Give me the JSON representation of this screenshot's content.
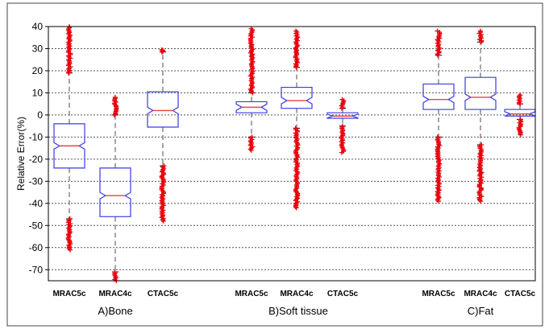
{
  "chart_data": {
    "type": "box",
    "ylabel": "Relative Error(%)",
    "ylim": [
      -75,
      40
    ],
    "yticks": [
      40,
      30,
      20,
      10,
      0,
      -10,
      -20,
      -30,
      -40,
      -50,
      -60,
      -70
    ],
    "grid": true,
    "colors": {
      "box": "#3a3ae6",
      "median": "#e8433a",
      "whisker": "#7f7f7f",
      "outlier": "#e8000b"
    },
    "groups": [
      {
        "label": "A)Bone",
        "boxes": [
          {
            "category": "MRAC5c",
            "q1": -24,
            "median": -14,
            "q3": -4,
            "whisker_low": -47,
            "whisker_high": 19,
            "outliers_low": [
              -47,
              -61
            ],
            "outliers_high": [
              19,
              40
            ]
          },
          {
            "category": "MRAC4c",
            "q1": -46,
            "median": -36.5,
            "q3": -24,
            "whisker_low": -71,
            "whisker_high": 0,
            "outliers_low": [
              -71,
              -75
            ],
            "outliers_high": [
              0,
              8
            ]
          },
          {
            "category": "CTAC5c",
            "q1": -5.5,
            "median": 2,
            "q3": 10.5,
            "whisker_low": -23,
            "whisker_high": 28.5,
            "outliers_low": [
              -23,
              -48
            ],
            "outliers_high": [
              28.5,
              29.5
            ]
          }
        ]
      },
      {
        "label": "B)Soft tissue",
        "boxes": [
          {
            "category": "MRAC5c",
            "q1": 1,
            "median": 3.5,
            "q3": 6,
            "whisker_low": -10,
            "whisker_high": 10,
            "outliers_low": [
              -10,
              -16
            ],
            "outliers_high": [
              10,
              39
            ]
          },
          {
            "category": "MRAC4c",
            "q1": 3,
            "median": 6.5,
            "q3": 12.5,
            "whisker_low": -6,
            "whisker_high": 21.5,
            "outliers_low": [
              -6,
              -42
            ],
            "outliers_high": [
              21.5,
              38
            ]
          },
          {
            "category": "CTAC5c",
            "q1": -1.5,
            "median": -0.5,
            "q3": 1,
            "whisker_low": -5,
            "whisker_high": 3,
            "outliers_low": [
              -5,
              -17
            ],
            "outliers_high": [
              3,
              7
            ]
          }
        ]
      },
      {
        "label": "C)Fat",
        "boxes": [
          {
            "category": "MRAC5c",
            "q1": 2.5,
            "median": 7,
            "q3": 14,
            "whisker_low": -10,
            "whisker_high": 27,
            "outliers_low": [
              -10,
              -39
            ],
            "outliers_high": [
              27,
              38
            ]
          },
          {
            "category": "MRAC4c",
            "q1": 2.5,
            "median": 8,
            "q3": 17,
            "whisker_low": -13.5,
            "whisker_high": 33,
            "outliers_low": [
              -13.5,
              -39
            ],
            "outliers_high": [
              33,
              38
            ]
          },
          {
            "category": "CTAC5c",
            "q1": -0.5,
            "median": 0.5,
            "q3": 2.5,
            "whisker_low": -2,
            "whisker_high": 5,
            "outliers_low": [
              -2,
              -9
            ],
            "outliers_high": [
              5,
              9
            ]
          }
        ]
      }
    ]
  }
}
